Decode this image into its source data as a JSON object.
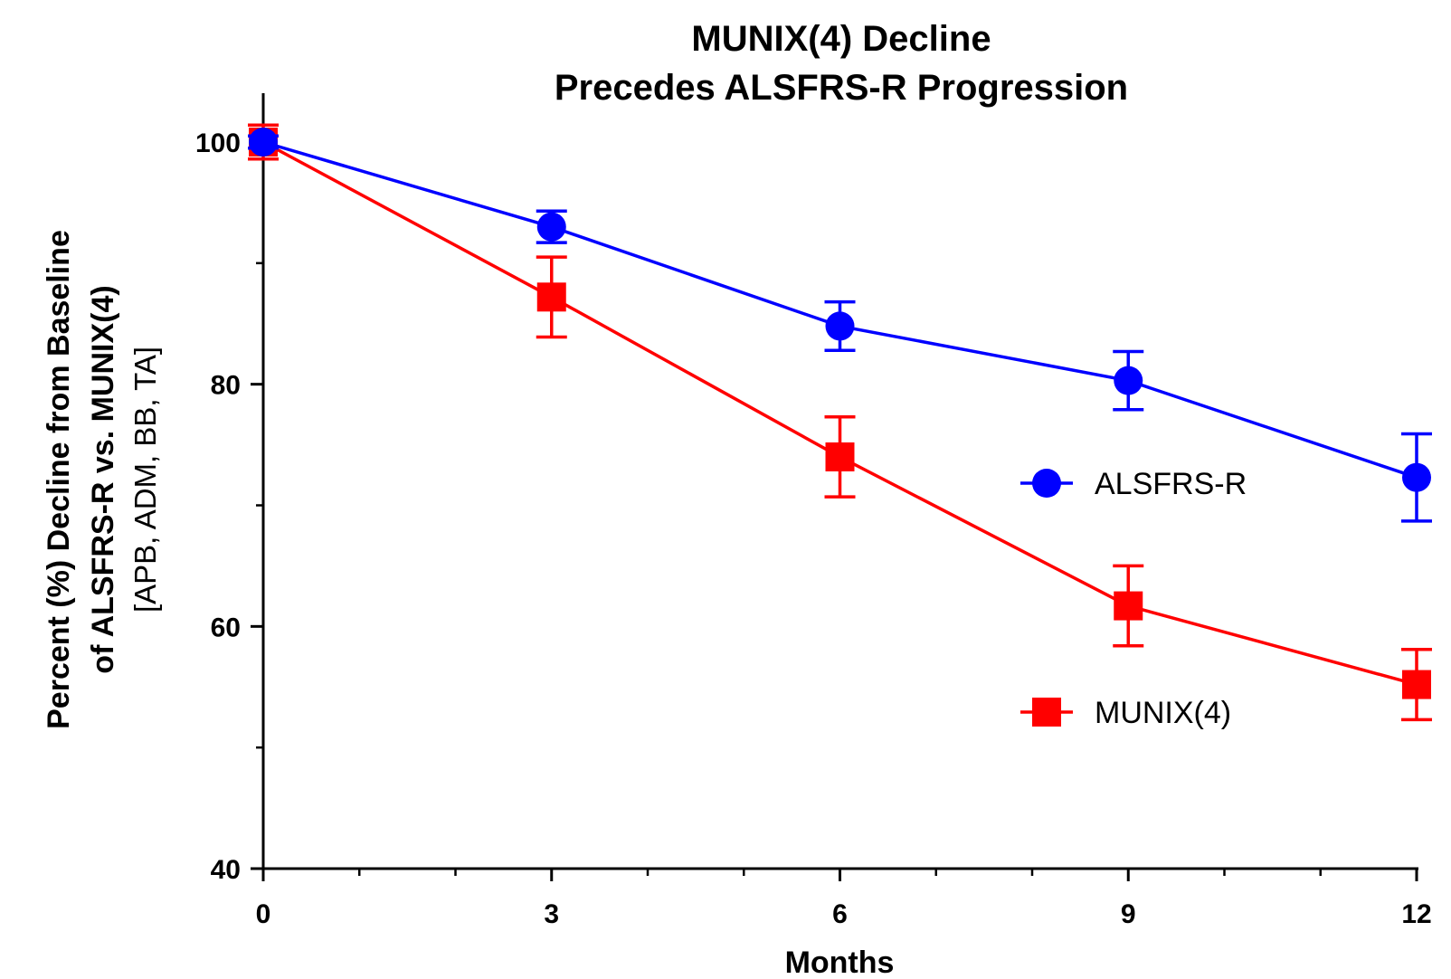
{
  "chart_data": {
    "type": "line",
    "title": [
      "MUNIX(4) Decline",
      "Precedes ALSFRS-R Progression"
    ],
    "xlabel": "Months",
    "ylabel": [
      "Percent (%) Decline from Baseline",
      "of ALSFRS-R vs. MUNIX(4)",
      "[APB, ADM, BB, TA]"
    ],
    "x": [
      0,
      3,
      6,
      9,
      12
    ],
    "xlim": [
      0,
      12
    ],
    "ylim": [
      40,
      104
    ],
    "x_ticks": [
      0,
      3,
      6,
      9,
      12
    ],
    "x_tick_labels": [
      "0",
      "3",
      "6",
      "9",
      "12"
    ],
    "x_minor_ticks": [
      1,
      2,
      4,
      5,
      7,
      8,
      10,
      11
    ],
    "y_ticks": [
      40,
      60,
      80,
      100
    ],
    "y_tick_labels": [
      "40",
      "60",
      "80",
      "100"
    ],
    "y_minor_ticks": [
      50,
      70,
      90
    ],
    "grid": false,
    "legend_position": "right",
    "series": [
      {
        "name": "ALSFRS-R",
        "color": "#0000ff",
        "marker": "circle",
        "values": [
          100,
          93,
          84.8,
          80.3,
          72.3
        ],
        "error": [
          0.5,
          1.3,
          2.0,
          2.4,
          3.6
        ]
      },
      {
        "name": "MUNIX(4)",
        "color": "#ff0000",
        "marker": "square",
        "values": [
          100,
          87.2,
          74,
          61.7,
          55.2
        ],
        "error": [
          1.4,
          3.3,
          3.3,
          3.3,
          2.9
        ]
      }
    ]
  }
}
